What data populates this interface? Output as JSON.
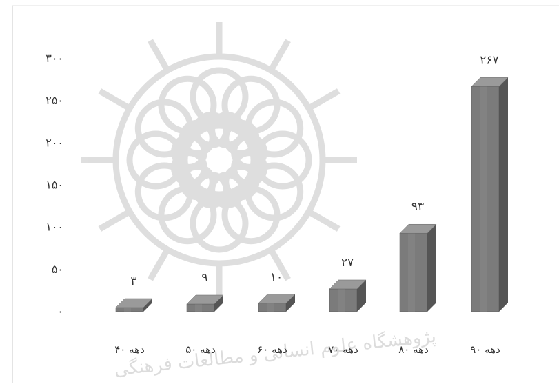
{
  "chart_data": {
    "type": "bar",
    "title": "",
    "xlabel": "",
    "ylabel": "",
    "categories": [
      "دهه ۴۰",
      "دهه ۵۰",
      "دهه ۶۰",
      "دهه ۷۰",
      "دهه ۸۰",
      "دهه ۹۰"
    ],
    "values": [
      3,
      9,
      10,
      27,
      93,
      267
    ],
    "data_labels": [
      "۳",
      "۹",
      "۱۰",
      "۲۷",
      "۹۳",
      "۲۶۷"
    ],
    "y_ticks": [
      {
        "value": 0,
        "label": "۰"
      },
      {
        "value": 50,
        "label": "۵۰"
      },
      {
        "value": 100,
        "label": "۱۰۰"
      },
      {
        "value": 150,
        "label": "۱۵۰"
      },
      {
        "value": 200,
        "label": "۲۰۰"
      },
      {
        "value": 250,
        "label": "۲۵۰"
      },
      {
        "value": 300,
        "label": "۳۰۰"
      }
    ],
    "ylim": [
      0,
      300
    ],
    "grid": false,
    "legend": "none",
    "style": "3d-bar",
    "colors": {
      "bar_front": "#7b7b7b",
      "bar_top": "#9a9a9a",
      "bar_side": "#555555",
      "watermark": "#d4d4d4"
    }
  },
  "watermark": {
    "icon": "star-rosette-logo",
    "text": "پژوهشگاه علوم انسانی و مطالعات فرهنگی"
  }
}
